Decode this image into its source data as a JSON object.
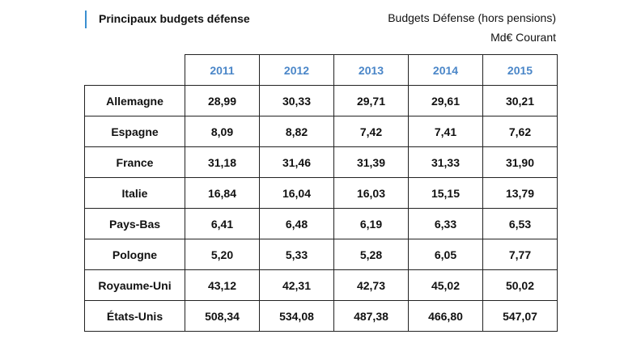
{
  "header": {
    "title": "Principaux budgets défense",
    "subtitle_line1": "Budgets Défense (hors pensions)",
    "subtitle_line2": "Md€ Courant",
    "accent_color": "#3a8fd0",
    "year_color": "#4a86c8"
  },
  "table": {
    "years": [
      "2011",
      "2012",
      "2013",
      "2014",
      "2015"
    ],
    "rows": [
      {
        "country": "Allemagne",
        "values": [
          "28,99",
          "30,33",
          "29,71",
          "29,61",
          "30,21"
        ]
      },
      {
        "country": "Espagne",
        "values": [
          "8,09",
          "8,82",
          "7,42",
          "7,41",
          "7,62"
        ]
      },
      {
        "country": "France",
        "values": [
          "31,18",
          "31,46",
          "31,39",
          "31,33",
          "31,90"
        ]
      },
      {
        "country": "Italie",
        "values": [
          "16,84",
          "16,04",
          "16,03",
          "15,15",
          "13,79"
        ]
      },
      {
        "country": "Pays-Bas",
        "values": [
          "6,41",
          "6,48",
          "6,19",
          "6,33",
          "6,53"
        ]
      },
      {
        "country": "Pologne",
        "values": [
          "5,20",
          "5,33",
          "5,28",
          "6,05",
          "7,77"
        ]
      },
      {
        "country": "Royaume-Uni",
        "values": [
          "43,12",
          "42,31",
          "42,73",
          "45,02",
          "50,02"
        ]
      },
      {
        "country": "États-Unis",
        "values": [
          "508,34",
          "534,08",
          "487,38",
          "466,80",
          "547,07"
        ]
      }
    ]
  }
}
